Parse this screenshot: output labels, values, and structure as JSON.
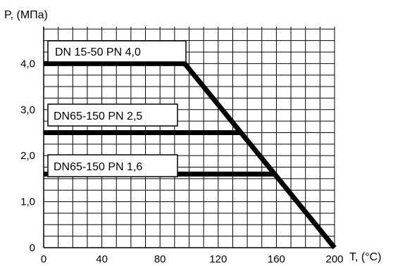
{
  "chart_data": {
    "type": "line",
    "xlabel": "T, (°C)",
    "ylabel": "P, (МПа)",
    "xlim": [
      0,
      200
    ],
    "ylim": [
      0,
      4.8
    ],
    "x_ticks": [
      {
        "value": 0,
        "label": "0"
      },
      {
        "value": 40,
        "label": "40"
      },
      {
        "value": 80,
        "label": "80"
      },
      {
        "value": 120,
        "label": "120"
      },
      {
        "value": 160,
        "label": "160"
      },
      {
        "value": 200,
        "label": "200"
      }
    ],
    "y_ticks": [
      {
        "value": 0,
        "label": "0"
      },
      {
        "value": 1.0,
        "label": "1,0"
      },
      {
        "value": 2.0,
        "label": "2,0"
      },
      {
        "value": 3.0,
        "label": "3,0"
      },
      {
        "value": 4.0,
        "label": "4,0"
      }
    ],
    "grid": true,
    "x_grid_step": 10,
    "y_grid_step": 0.25,
    "series": [
      {
        "name": "DN 15-50  PN 4,0",
        "points": [
          [
            0,
            4.0
          ],
          [
            97,
            4.0
          ],
          [
            200,
            0
          ]
        ]
      },
      {
        "name": "DN65-150  PN 2,5",
        "points": [
          [
            0,
            2.5
          ],
          [
            136,
            2.5
          ]
        ]
      },
      {
        "name": "DN65-150  PN 1,6",
        "points": [
          [
            0,
            1.6
          ],
          [
            159,
            1.6
          ]
        ]
      }
    ],
    "colors": {
      "line": "#000000",
      "grid": "#000000",
      "background": "#ffffff"
    }
  }
}
